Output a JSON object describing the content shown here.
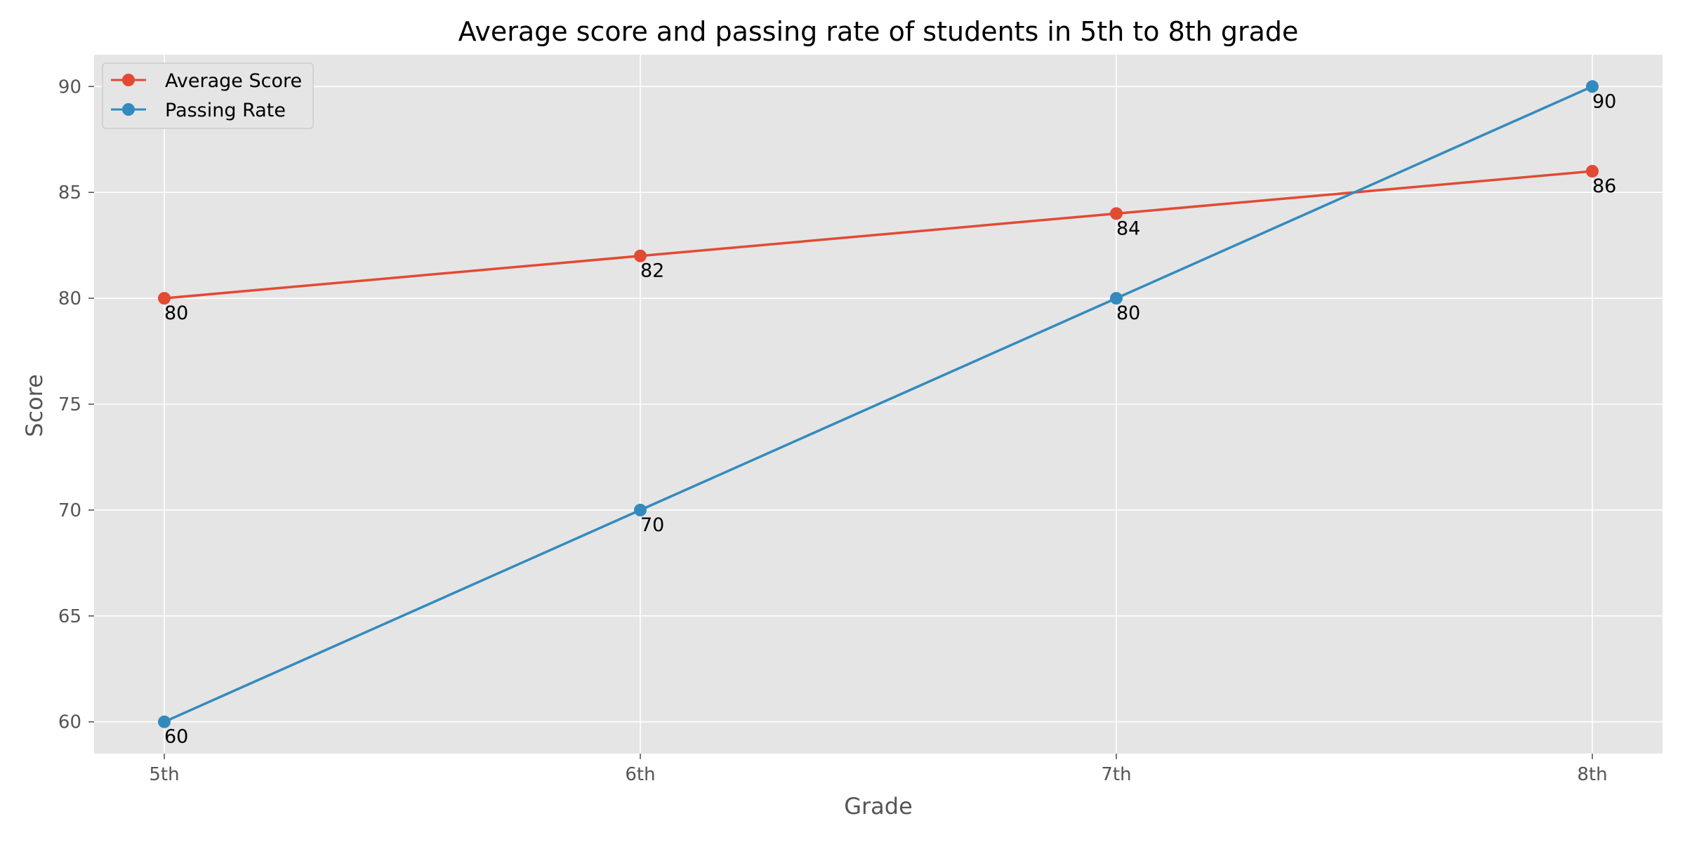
{
  "chart_data": {
    "type": "line",
    "title": "Average score and passing rate of students in 5th to 8th grade",
    "xlabel": "Grade",
    "ylabel": "Score",
    "categories": [
      "5th",
      "6th",
      "7th",
      "8th"
    ],
    "ylim": [
      58.5,
      91.5
    ],
    "yticks": [
      60,
      65,
      70,
      75,
      80,
      85,
      90
    ],
    "grid": true,
    "legend_position": "top-left",
    "background_color": "#e5e5e5",
    "series": [
      {
        "name": "Average Score",
        "color": "#e24a33",
        "values": [
          80,
          82,
          84,
          86
        ],
        "labels": [
          "80",
          "82",
          "84",
          "86"
        ]
      },
      {
        "name": "Passing Rate",
        "color": "#348abd",
        "values": [
          60,
          70,
          80,
          90
        ],
        "labels": [
          "60",
          "70",
          "80",
          "90"
        ]
      }
    ]
  }
}
